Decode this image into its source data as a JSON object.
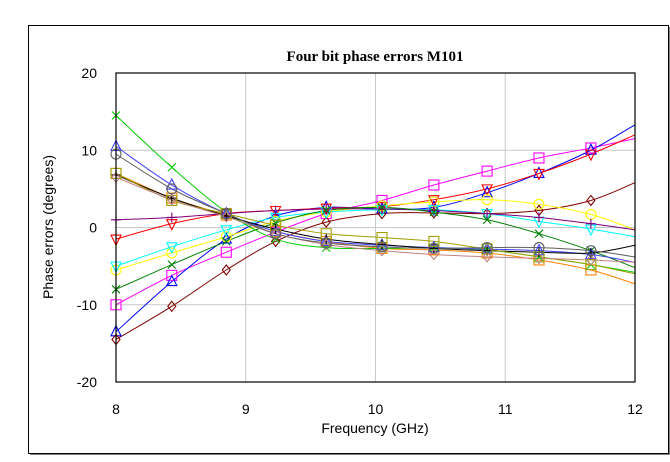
{
  "chart_data": {
    "type": "line",
    "title": "Four bit phase errors M101",
    "xlabel": "Frequency (GHz)",
    "ylabel": "Phase errors (degrees)",
    "xlim": [
      8,
      12
    ],
    "ylim": [
      -20,
      20
    ],
    "xticks": [
      "8",
      "9",
      "10",
      "11",
      "12"
    ],
    "yticks": [
      "20",
      "10",
      "0",
      "-10",
      "-20"
    ],
    "grid": true,
    "series": [
      {
        "color": "#ff00ff",
        "marker": "square",
        "x": [
          8,
          8.43,
          8.85,
          9.23,
          9.62,
          10.05,
          10.45,
          10.86,
          11.26,
          11.66,
          12
        ],
        "y": [
          -10,
          -6.2,
          -3.2,
          -0.6,
          1.8,
          3.5,
          5.5,
          7.3,
          9,
          10.3,
          11.5
        ]
      },
      {
        "color": "#0000ff",
        "marker": "triangle",
        "x": [
          8,
          8.43,
          8.85,
          9.23,
          9.62,
          10.05,
          10.45,
          10.86,
          11.26,
          11.66,
          12
        ],
        "y": [
          -13.5,
          -7,
          -1.5,
          1.5,
          2.6,
          2.4,
          2.6,
          4.5,
          7,
          10,
          13.3
        ]
      },
      {
        "color": "#ff0000",
        "marker": "down-triangle",
        "x": [
          8,
          8.43,
          8.85,
          9.23,
          9.62,
          10.05,
          10.45,
          10.86,
          11.26,
          11.66,
          12
        ],
        "y": [
          -1.5,
          0.5,
          1.8,
          2.2,
          2.5,
          2.7,
          3.6,
          5,
          7,
          9.5,
          12
        ]
      },
      {
        "color": "#800000",
        "marker": "diamond",
        "x": [
          8,
          8.43,
          8.85,
          9.23,
          9.62,
          10.05,
          10.45,
          10.86,
          11.26,
          11.66,
          12
        ],
        "y": [
          -14.5,
          -10.2,
          -5.5,
          -1.8,
          0.7,
          1.8,
          1.9,
          1.8,
          2.2,
          3.5,
          5.8
        ]
      },
      {
        "color": "#ffff00",
        "marker": "circle",
        "x": [
          8,
          8.43,
          8.85,
          9.23,
          9.62,
          10.05,
          10.45,
          10.86,
          11.26,
          11.66,
          12
        ],
        "y": [
          -5.5,
          -3.3,
          -1.2,
          0.8,
          2,
          2.8,
          3.3,
          3.6,
          3,
          1.7,
          -0.3
        ]
      },
      {
        "color": "#00ffff",
        "marker": "down-triangle",
        "x": [
          8,
          8.43,
          8.85,
          9.23,
          9.62,
          10.05,
          10.45,
          10.86,
          11.26,
          11.66,
          12
        ],
        "y": [
          -5,
          -2.5,
          -0.3,
          1.3,
          2,
          2.3,
          2.3,
          1.8,
          0.8,
          -0.2,
          -1.2
        ]
      },
      {
        "color": "#800080",
        "marker": "plus",
        "x": [
          8,
          8.43,
          8.85,
          9.23,
          9.62,
          10.05,
          10.45,
          10.86,
          11.26,
          11.66,
          12
        ],
        "y": [
          1,
          1.3,
          1.8,
          2.2,
          2.4,
          2.4,
          2.2,
          1.8,
          1.3,
          0.5,
          -0.3
        ]
      },
      {
        "color": "#008000",
        "marker": "x",
        "x": [
          8,
          8.43,
          8.85,
          9.23,
          9.62,
          10.05,
          10.45,
          10.86,
          11.26,
          11.66,
          12
        ],
        "y": [
          -8,
          -4.8,
          -1.8,
          0.6,
          2.2,
          2.6,
          2,
          1,
          -0.8,
          -3,
          -5.2
        ]
      },
      {
        "color": "#ff8000",
        "marker": "square",
        "x": [
          8,
          8.43,
          8.85,
          9.23,
          9.62,
          10.05,
          10.45,
          10.86,
          11.26,
          11.66,
          12
        ],
        "y": [
          7,
          3.8,
          1.6,
          -0.5,
          -1.8,
          -2.7,
          -2.9,
          -3.3,
          -4.2,
          -5.5,
          -7.3
        ]
      },
      {
        "color": "#00cc00",
        "marker": "x",
        "x": [
          8,
          8.43,
          8.85,
          9.23,
          9.62,
          10.05,
          10.45,
          10.86,
          11.26,
          11.66,
          12
        ],
        "y": [
          14.5,
          7.8,
          2,
          -1.5,
          -2.6,
          -2.7,
          -2.6,
          -2.9,
          -3.8,
          -4.8,
          -5.8
        ]
      },
      {
        "color": "#4040ff",
        "marker": "triangle",
        "x": [
          8,
          8.43,
          8.85,
          9.23,
          9.62,
          10.05,
          10.45,
          10.86,
          11.26,
          11.66,
          12
        ],
        "y": [
          10.5,
          5.5,
          1.8,
          -0.5,
          -1.8,
          -2.3,
          -2.6,
          -2.8,
          -3,
          -3.5,
          -4.5
        ]
      },
      {
        "color": "#000000",
        "marker": "plus",
        "x": [
          8,
          8.43,
          8.85,
          9.23,
          9.62,
          10.05,
          10.45,
          10.86,
          11.26,
          11.66,
          12
        ],
        "y": [
          6.8,
          3.8,
          1.5,
          -0.2,
          -1.5,
          -2.2,
          -2.7,
          -3,
          -3.2,
          -3.3,
          -2.3
        ]
      },
      {
        "color": "#a0a000",
        "marker": "square",
        "x": [
          8,
          8.43,
          8.85,
          9.23,
          9.62,
          10.05,
          10.45,
          10.86,
          11.26,
          11.66,
          12
        ],
        "y": [
          7,
          3.5,
          1.8,
          0.3,
          -0.8,
          -1.3,
          -1.8,
          -2.8,
          -3.8,
          -4.8,
          -6
        ]
      },
      {
        "color": "#c08080",
        "marker": "diamond",
        "x": [
          8,
          8.43,
          8.85,
          9.23,
          9.62,
          10.05,
          10.45,
          10.86,
          11.26,
          11.66,
          12
        ],
        "y": [
          6.5,
          3.6,
          1.4,
          -0.8,
          -2.2,
          -3,
          -3.5,
          -3.8,
          -4,
          -4.2,
          -4.5
        ]
      },
      {
        "color": "#606060",
        "marker": "circle",
        "x": [
          8,
          8.43,
          8.85,
          9.23,
          9.62,
          10.05,
          10.45,
          10.86,
          11.26,
          11.66,
          12
        ],
        "y": [
          9.5,
          5,
          1.8,
          -0.8,
          -2,
          -2.5,
          -2.7,
          -2.6,
          -2.6,
          -3,
          -3.8
        ]
      }
    ]
  }
}
